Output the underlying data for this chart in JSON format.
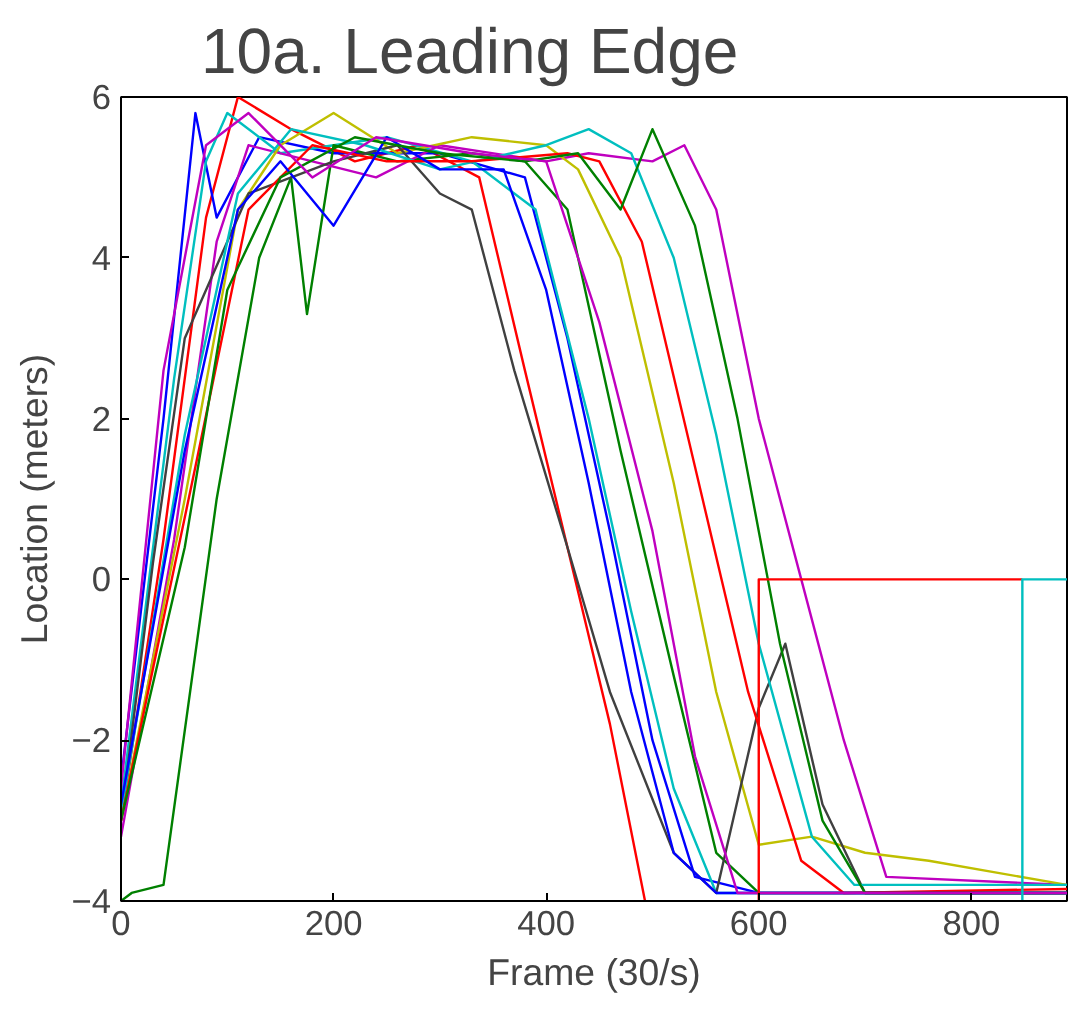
{
  "chart_data": {
    "type": "line",
    "title": "10a. Leading Edge",
    "xlabel": "Frame (30/s)",
    "ylabel": "Location (meters)",
    "xlim": [
      0,
      890
    ],
    "ylim": [
      -4,
      6
    ],
    "xticks": [
      0,
      200,
      400,
      600,
      800
    ],
    "yticks": [
      -4,
      -2,
      0,
      2,
      4,
      6
    ],
    "grid": false,
    "series": [
      {
        "color": "#ff0000",
        "x": [
          0,
          40,
          80,
          110,
          160,
          220,
          280,
          337,
          380,
          420,
          460,
          493
        ],
        "values": [
          -3,
          0.5,
          4.5,
          6,
          5.6,
          5.2,
          5.4,
          5,
          2.6,
          0.4,
          -1.8,
          -4
        ]
      },
      {
        "color": "#0000ff",
        "x": [
          0,
          40,
          70,
          90,
          130,
          200,
          300,
          380,
          420,
          460,
          500,
          540,
          600,
          890
        ],
        "values": [
          -2.5,
          2,
          5.8,
          4.5,
          5.5,
          5.3,
          5.3,
          5,
          3,
          0.6,
          -2,
          -3.7,
          -3.9,
          -3.9
        ]
      },
      {
        "color": "#00bfbf",
        "x": [
          0,
          50,
          80,
          100,
          150,
          250,
          330,
          390,
          440,
          480,
          520,
          560,
          890
        ],
        "values": [
          -2.8,
          2.5,
          5.2,
          5.8,
          5.3,
          5.5,
          5.2,
          4.6,
          2,
          -0.4,
          -2.6,
          -3.9,
          -3.9
        ]
      },
      {
        "color": "#008000",
        "x": [
          0,
          10,
          40,
          90,
          130,
          160,
          175,
          200,
          260,
          330,
          380,
          420,
          470,
          520,
          560,
          600,
          890
        ],
        "values": [
          -4,
          -3.9,
          -3.8,
          1,
          4,
          5,
          3.3,
          5.4,
          5.2,
          5.3,
          5.2,
          4.6,
          1.6,
          -1.2,
          -3.4,
          -3.9,
          -3.9
        ]
      },
      {
        "color": "#bf00bf",
        "x": [
          0,
          50,
          90,
          120,
          180,
          240,
          300,
          400,
          440,
          500,
          530,
          560,
          600,
          640,
          680,
          720,
          890
        ],
        "values": [
          -3.2,
          0.5,
          4.2,
          5.4,
          5.2,
          5,
          5.4,
          5.2,
          5.3,
          5.2,
          5.4,
          4.6,
          2,
          0,
          -2,
          -3.7,
          -3.8
        ]
      },
      {
        "color": "#bfbf00",
        "x": [
          0,
          60,
          110,
          150,
          200,
          260,
          330,
          400,
          430,
          470,
          520,
          560,
          600,
          650,
          700,
          760,
          890
        ],
        "values": [
          -3,
          1,
          4.6,
          5.4,
          5.8,
          5.3,
          5.5,
          5.4,
          5.1,
          4,
          1.2,
          -1.4,
          -3.3,
          -3.2,
          -3.4,
          -3.5,
          -3.8
        ]
      },
      {
        "color": "#404040",
        "x": [
          0,
          30,
          60,
          120,
          200,
          260,
          300,
          330,
          370,
          420,
          460,
          520,
          560,
          600,
          625,
          660,
          700,
          890
        ],
        "values": [
          -3,
          0.2,
          3,
          4.8,
          5.2,
          5.4,
          4.8,
          4.6,
          2.6,
          0.4,
          -1.4,
          -3.4,
          -3.9,
          -1.6,
          -0.8,
          -2.8,
          -3.9,
          -3.9
        ]
      },
      {
        "color": "#00bfbf",
        "x": [
          0,
          60,
          110,
          160,
          230,
          300,
          400,
          440,
          480,
          520,
          560,
          600,
          650,
          690,
          890
        ],
        "values": [
          -2.9,
          1.8,
          4.8,
          5.6,
          5.4,
          5.1,
          5.4,
          5.6,
          5.3,
          4,
          1.8,
          -0.8,
          -3.2,
          -3.8,
          -3.8
        ]
      },
      {
        "color": "#ff0000",
        "x": [
          0,
          70,
          120,
          180,
          250,
          330,
          420,
          450,
          490,
          540,
          590,
          640,
          680,
          890
        ],
        "values": [
          -3,
          1.4,
          4.6,
          5.4,
          5.2,
          5.2,
          5.3,
          5.2,
          4.2,
          1.4,
          -1.4,
          -3.5,
          -3.9,
          -3.85
        ]
      },
      {
        "color": "#0000ff",
        "x": [
          0,
          60,
          110,
          150,
          200,
          250,
          300,
          360,
          400,
          440,
          480,
          520,
          560,
          890
        ],
        "values": [
          -2.8,
          1.6,
          4.6,
          5.2,
          4.4,
          5.5,
          5.1,
          5.1,
          3.6,
          1.2,
          -1.4,
          -3.4,
          -3.9,
          -3.9
        ]
      },
      {
        "color": "#008000",
        "x": [
          0,
          60,
          100,
          150,
          220,
          300,
          380,
          430,
          470,
          500,
          540,
          580,
          620,
          660,
          700,
          890
        ],
        "values": [
          -3,
          0.4,
          3.6,
          5,
          5.5,
          5.3,
          5.2,
          5.3,
          4.6,
          5.6,
          4.4,
          2,
          -0.8,
          -3,
          -3.9,
          -3.9
        ]
      },
      {
        "color": "#bf00bf",
        "x": [
          0,
          40,
          80,
          120,
          180,
          240,
          330,
          400,
          450,
          500,
          540,
          580,
          890
        ],
        "values": [
          -2.6,
          2.6,
          5.4,
          5.8,
          5,
          5.5,
          5.3,
          5.2,
          3.2,
          0.6,
          -2.2,
          -3.9,
          -3.9
        ]
      },
      {
        "color": "#ff0000",
        "x": [
          600,
          600,
          848
        ],
        "values": [
          -4,
          0,
          0
        ]
      },
      {
        "color": "#00bfbf",
        "x": [
          848,
          848,
          890
        ],
        "values": [
          -4,
          0,
          0
        ]
      }
    ]
  }
}
